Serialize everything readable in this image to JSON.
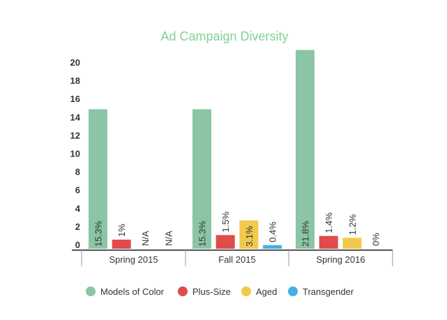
{
  "chart_data": {
    "type": "bar",
    "title": "Ad Campaign Diversity",
    "xlabel": "",
    "ylabel": "",
    "ylim": [
      0,
      21
    ],
    "yticks": [
      0,
      2,
      4,
      6,
      8,
      10,
      12,
      14,
      16,
      18,
      20
    ],
    "grid": false,
    "legend_position": "bottom",
    "categories": [
      "Spring 2015",
      "Fall 2015",
      "Spring 2016"
    ],
    "series": [
      {
        "name": "Models of Color",
        "color": "#8BC5A5",
        "values": [
          15.3,
          15.3,
          21.8
        ],
        "labels": [
          "15.3%",
          "15.3%",
          "21.8%"
        ]
      },
      {
        "name": "Plus-Size",
        "color": "#E04B4B",
        "values": [
          1,
          1.5,
          1.4
        ],
        "labels": [
          "1%",
          "1.5%",
          "1.4%"
        ]
      },
      {
        "name": "Aged",
        "color": "#F2C94C",
        "values": [
          null,
          3.1,
          1.2
        ],
        "labels": [
          "N/A",
          "3.1%",
          "1.2%"
        ]
      },
      {
        "name": "Transgender",
        "color": "#4AAEE0",
        "values": [
          null,
          0.4,
          0
        ],
        "labels": [
          "N/A",
          "0.4%",
          "0%"
        ]
      }
    ],
    "title_color": "#86CF95"
  }
}
